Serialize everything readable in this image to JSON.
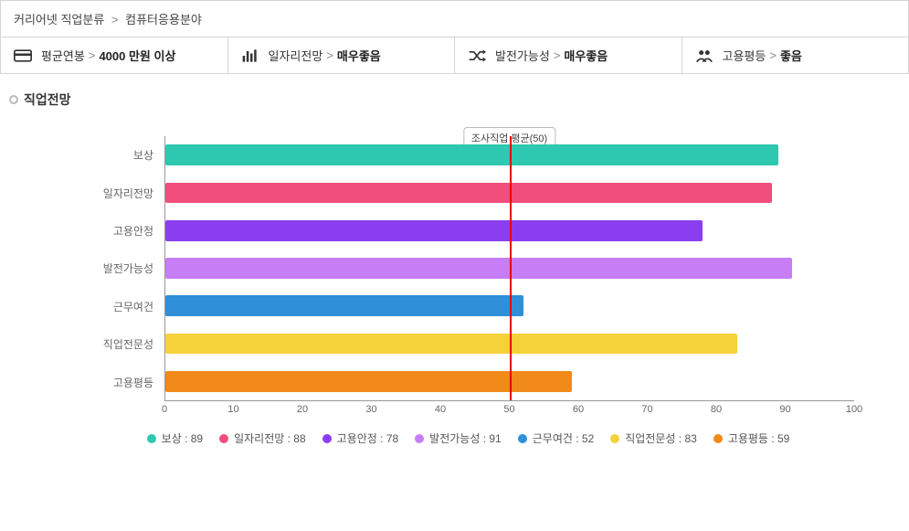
{
  "breadcrumb": {
    "item1": "커리어넷 직업분류",
    "item2": "컴퓨터응용분야"
  },
  "stats": {
    "salary": {
      "label": "평균연봉",
      "value": "4000 만원 이상"
    },
    "jobs": {
      "label": "일자리전망",
      "value": "매우좋음"
    },
    "growth": {
      "label": "발전가능성",
      "value": "매우좋음"
    },
    "equal": {
      "label": "고용평등",
      "value": "좋음"
    }
  },
  "section_title": "직업전망",
  "chart": {
    "type": "bar-horizontal",
    "xmin": 0,
    "xmax": 100,
    "xtick_step": 10,
    "reference": {
      "value": 50,
      "label": "조사직업 평균(50)",
      "line_color": "#e60000"
    },
    "axis_color": "#999999",
    "tick_font_size": 11,
    "label_font_size": 12,
    "background_color": "#ffffff",
    "series": [
      {
        "key": "보상",
        "label": "보상",
        "value": 89,
        "color": "#2fc8b0"
      },
      {
        "key": "일자리전망",
        "label": "일자리전망",
        "value": 88,
        "color": "#f24e7b"
      },
      {
        "key": "고용안정",
        "label": "고용안정",
        "value": 78,
        "color": "#8a3ef0"
      },
      {
        "key": "발전가능성",
        "label": "발전가능성",
        "value": 91,
        "color": "#c77df5"
      },
      {
        "key": "근무여건",
        "label": "근무여건",
        "value": 52,
        "color": "#2f8fd8"
      },
      {
        "key": "직업전문성",
        "label": "직업전문성",
        "value": 83,
        "color": "#f5d23a"
      },
      {
        "key": "고용평등",
        "label": "고용평등",
        "value": 59,
        "color": "#f28a1a"
      }
    ],
    "xticks": [
      "0",
      "10",
      "20",
      "30",
      "40",
      "50",
      "60",
      "70",
      "80",
      "90",
      "100"
    ],
    "legend_sep": " : "
  }
}
